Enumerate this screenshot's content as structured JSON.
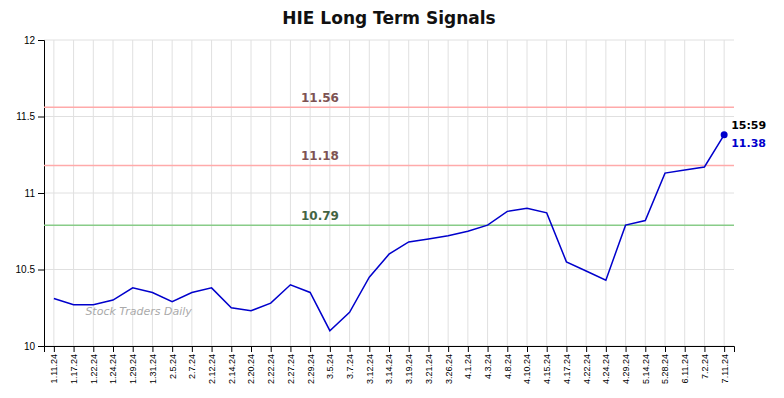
{
  "chart_data": {
    "type": "line",
    "title": "HIE Long Term Signals",
    "categories": [
      "1.11.24",
      "1.17.24",
      "1.22.24",
      "1.24.24",
      "1.29.24",
      "1.31.24",
      "2.5.24",
      "2.7.24",
      "2.12.24",
      "2.14.24",
      "2.20.24",
      "2.22.24",
      "2.27.24",
      "2.29.24",
      "3.5.24",
      "3.7.24",
      "3.12.24",
      "3.14.24",
      "3.19.24",
      "3.21.24",
      "3.26.24",
      "4.1.24",
      "4.3.24",
      "4.8.24",
      "4.10.24",
      "4.15.24",
      "4.17.24",
      "4.22.24",
      "4.24.24",
      "4.29.24",
      "5.14.24",
      "5.28.24",
      "6.11.24",
      "7.2.24",
      "7.11.24"
    ],
    "values": [
      10.31,
      10.27,
      10.27,
      10.3,
      10.38,
      10.35,
      10.29,
      10.35,
      10.38,
      10.25,
      10.23,
      10.28,
      10.4,
      10.35,
      10.1,
      10.22,
      10.45,
      10.6,
      10.68,
      10.7,
      10.72,
      10.75,
      10.79,
      10.88,
      10.9,
      10.87,
      10.55,
      10.49,
      10.43,
      10.79,
      10.82,
      11.13,
      11.15,
      11.17,
      11.38
    ],
    "color": "#0000cc",
    "ylim": [
      10.0,
      12.0
    ],
    "yticks": [
      10,
      10.5,
      11,
      11.5,
      12
    ],
    "grid": true,
    "reference_lines": [
      {
        "value": 11.56,
        "label": "11.56",
        "color": "#ffaaaa"
      },
      {
        "value": 11.18,
        "label": "11.18",
        "color": "#ffaaaa"
      },
      {
        "value": 10.79,
        "label": "10.79",
        "color": "#88cc88"
      }
    ],
    "annotations": [
      {
        "text": "Stock Traders Daily"
      },
      {
        "text": "15:59",
        "category": "7.11.24"
      },
      {
        "text": "11.38",
        "category": "7.11.24",
        "value": 11.38
      }
    ]
  }
}
